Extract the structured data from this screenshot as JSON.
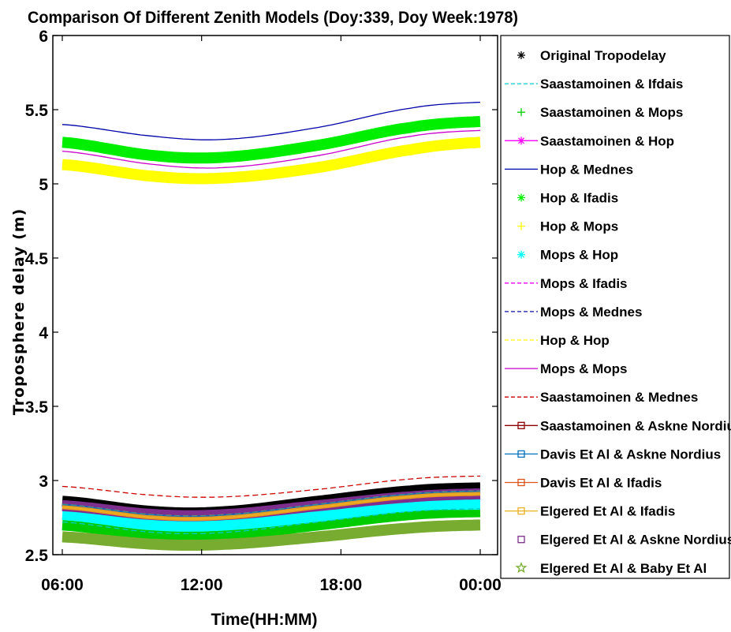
{
  "chart_data": {
    "type": "line",
    "title": "Comparison Of Different Zenith Models (Doy:339, Doy Week:1978)",
    "xlabel": "Time(HH:MM)",
    "ylabel": "Troposphere delay (m)",
    "x_ticks": [
      "06:00",
      "12:00",
      "18:00",
      "00:00"
    ],
    "y_ticks": [
      "2.5",
      "3",
      "3.5",
      "4",
      "4.5",
      "5",
      "5.5",
      "6"
    ],
    "ylim": [
      2.5,
      6
    ],
    "x_range_hours": [
      6,
      24
    ],
    "grid": false,
    "legend_position": "right",
    "series": [
      {
        "name": "Original Tropodelay",
        "color": "#000000",
        "style": "marker",
        "marker": "asterisk",
        "values": [
          2.86,
          2.79,
          2.79,
          2.86,
          2.93,
          2.95
        ]
      },
      {
        "name": "Saastamoinen & Ifdais",
        "color": "#00cccc",
        "style": "dashed",
        "marker": "none",
        "values": [
          2.72,
          2.65,
          2.65,
          2.72,
          2.79,
          2.81
        ]
      },
      {
        "name": "Saastamoinen & Mops",
        "color": "#00cc00",
        "style": "marker",
        "marker": "plus",
        "values": [
          2.7,
          2.63,
          2.63,
          2.7,
          2.77,
          2.79
        ]
      },
      {
        "name": "Saastamoinen & Hop",
        "color": "#ff00ff",
        "style": "solid",
        "marker": "asterisk",
        "values": [
          2.81,
          2.74,
          2.74,
          2.81,
          2.88,
          2.9
        ]
      },
      {
        "name": "Hop & Mednes",
        "color": "#0000aa",
        "style": "solid",
        "marker": "none",
        "values": [
          5.4,
          5.32,
          5.3,
          5.38,
          5.51,
          5.55
        ]
      },
      {
        "name": "Hop & Ifadis",
        "color": "#00ee00",
        "style": "marker",
        "marker": "asterisk",
        "values": [
          5.28,
          5.19,
          5.18,
          5.26,
          5.38,
          5.42
        ]
      },
      {
        "name": "Hop & Mops",
        "color": "#ffff00",
        "style": "marker",
        "marker": "plus",
        "values": [
          5.13,
          5.05,
          5.04,
          5.11,
          5.23,
          5.28
        ]
      },
      {
        "name": "Mops & Hop",
        "color": "#00ffff",
        "style": "marker",
        "marker": "asterisk",
        "values": [
          2.77,
          2.7,
          2.7,
          2.76,
          2.83,
          2.84
        ]
      },
      {
        "name": "Mops & Ifadis",
        "color": "#ff00ff",
        "style": "dashed",
        "marker": "none",
        "values": [
          2.83,
          2.76,
          2.76,
          2.83,
          2.9,
          2.92
        ]
      },
      {
        "name": "Mops & Mednes",
        "color": "#1111aa",
        "style": "dashed",
        "marker": "none",
        "values": [
          2.82,
          2.75,
          2.75,
          2.82,
          2.89,
          2.91
        ]
      },
      {
        "name": "Hop & Hop",
        "color": "#ffff00",
        "style": "dashed",
        "marker": "none",
        "values": [
          2.84,
          2.77,
          2.77,
          2.84,
          2.91,
          2.93
        ]
      },
      {
        "name": "Mops & Mops",
        "color": "#cc00cc",
        "style": "solid",
        "marker": "none",
        "values": [
          5.22,
          5.13,
          5.11,
          5.19,
          5.32,
          5.36
        ]
      },
      {
        "name": "Saastamoinen & Mednes",
        "color": "#cc0000",
        "style": "dashed",
        "marker": "none",
        "values": [
          2.96,
          2.9,
          2.89,
          2.94,
          3.01,
          3.03
        ]
      },
      {
        "name": "Saastamoinen & Askne Nordius",
        "color": "#8b0000",
        "style": "solid",
        "marker": "square",
        "values": [
          2.82,
          2.75,
          2.75,
          2.82,
          2.89,
          2.91
        ]
      },
      {
        "name": "Davis Et Al & Askne Nordius",
        "color": "#0072bd",
        "style": "solid",
        "marker": "square",
        "values": [
          2.83,
          2.76,
          2.76,
          2.83,
          2.9,
          2.92
        ]
      },
      {
        "name": "Davis Et Al & Ifadis",
        "color": "#d95319",
        "style": "solid",
        "marker": "square",
        "values": [
          2.82,
          2.75,
          2.75,
          2.82,
          2.89,
          2.91
        ]
      },
      {
        "name": "Elgered Et Al & Ifadis",
        "color": "#edb120",
        "style": "solid",
        "marker": "square",
        "values": [
          2.82,
          2.75,
          2.75,
          2.82,
          2.89,
          2.91
        ]
      },
      {
        "name": "Elgered Et Al & Askne Nordius",
        "color": "#7e2f8e",
        "style": "marker",
        "marker": "square",
        "values": [
          2.83,
          2.77,
          2.77,
          2.83,
          2.89,
          2.91
        ]
      },
      {
        "name": "Elgered Et Al & Baby Et Al",
        "color": "#77ac30",
        "style": "marker",
        "marker": "star",
        "values": [
          2.62,
          2.57,
          2.57,
          2.62,
          2.68,
          2.7
        ]
      }
    ],
    "x_hours": [
      6,
      10,
      13,
      17,
      21,
      24
    ]
  }
}
